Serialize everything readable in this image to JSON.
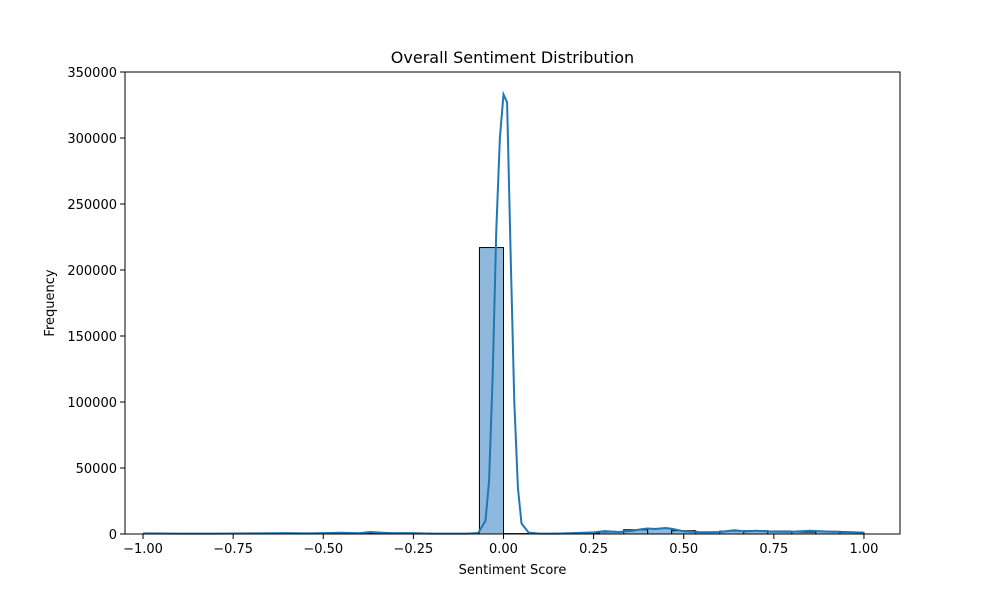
{
  "chart_data": {
    "type": "bar",
    "title": "Overall Sentiment Distribution",
    "xlabel": "Sentiment Score",
    "ylabel": "Frequency",
    "xlim": [
      -1.05,
      1.1
    ],
    "ylim": [
      0,
      350000
    ],
    "xticks": [
      -1.0,
      -0.75,
      -0.5,
      -0.25,
      0.0,
      0.25,
      0.5,
      0.75,
      1.0
    ],
    "xtick_labels": [
      "−1.00",
      "−0.75",
      "−0.50",
      "−0.25",
      "0.00",
      "0.25",
      "0.50",
      "0.75",
      "1.00"
    ],
    "yticks": [
      0,
      50000,
      100000,
      150000,
      200000,
      250000,
      300000,
      350000
    ],
    "ytick_labels": [
      "0",
      "50000",
      "100000",
      "150000",
      "200000",
      "250000",
      "300000",
      "350000"
    ],
    "grid": false,
    "colors": {
      "bar_fill": "#8fb9dc",
      "bar_edge": "#000000",
      "kde": "#1f77b4"
    },
    "histogram": {
      "bin_edges": [
        -1.0,
        -0.9333,
        -0.8667,
        -0.8,
        -0.7333,
        -0.6667,
        -0.6,
        -0.5333,
        -0.4667,
        -0.4,
        -0.3333,
        -0.2667,
        -0.2,
        -0.1333,
        -0.0667,
        0.0,
        0.0667,
        0.1333,
        0.2,
        0.2667,
        0.3333,
        0.4,
        0.4667,
        0.5333,
        0.6,
        0.6667,
        0.7333,
        0.8,
        0.8667,
        0.9333,
        1.0
      ],
      "counts": [
        100,
        50,
        50,
        80,
        100,
        150,
        300,
        400,
        500,
        600,
        900,
        700,
        300,
        150,
        217000,
        300,
        300,
        500,
        800,
        1500,
        3200,
        4200,
        2500,
        1500,
        2200,
        2500,
        2200,
        1500,
        2000,
        1200
      ]
    },
    "kde": {
      "x": [
        -1.0,
        -0.9,
        -0.8,
        -0.7,
        -0.6,
        -0.55,
        -0.5,
        -0.45,
        -0.4,
        -0.37,
        -0.34,
        -0.3,
        -0.25,
        -0.2,
        -0.15,
        -0.1,
        -0.07,
        -0.05,
        -0.04,
        -0.03,
        -0.02,
        -0.01,
        0.0,
        0.01,
        0.02,
        0.03,
        0.04,
        0.05,
        0.07,
        0.1,
        0.15,
        0.2,
        0.25,
        0.28,
        0.32,
        0.36,
        0.38,
        0.4,
        0.42,
        0.45,
        0.47,
        0.5,
        0.55,
        0.6,
        0.64,
        0.67,
        0.7,
        0.72,
        0.75,
        0.8,
        0.85,
        0.9,
        0.95,
        1.0
      ],
      "y": [
        500,
        300,
        300,
        500,
        700,
        500,
        700,
        900,
        600,
        1500,
        1000,
        500,
        700,
        300,
        300,
        300,
        800,
        10000,
        40000,
        120000,
        230000,
        300000,
        333000,
        327000,
        210000,
        100000,
        35000,
        8000,
        1000,
        300,
        300,
        800,
        1200,
        2200,
        1500,
        2500,
        3500,
        4200,
        3800,
        4500,
        3800,
        2000,
        1300,
        1500,
        2800,
        2000,
        2500,
        2200,
        1800,
        1700,
        2500,
        1800,
        1500,
        1000
      ]
    }
  }
}
